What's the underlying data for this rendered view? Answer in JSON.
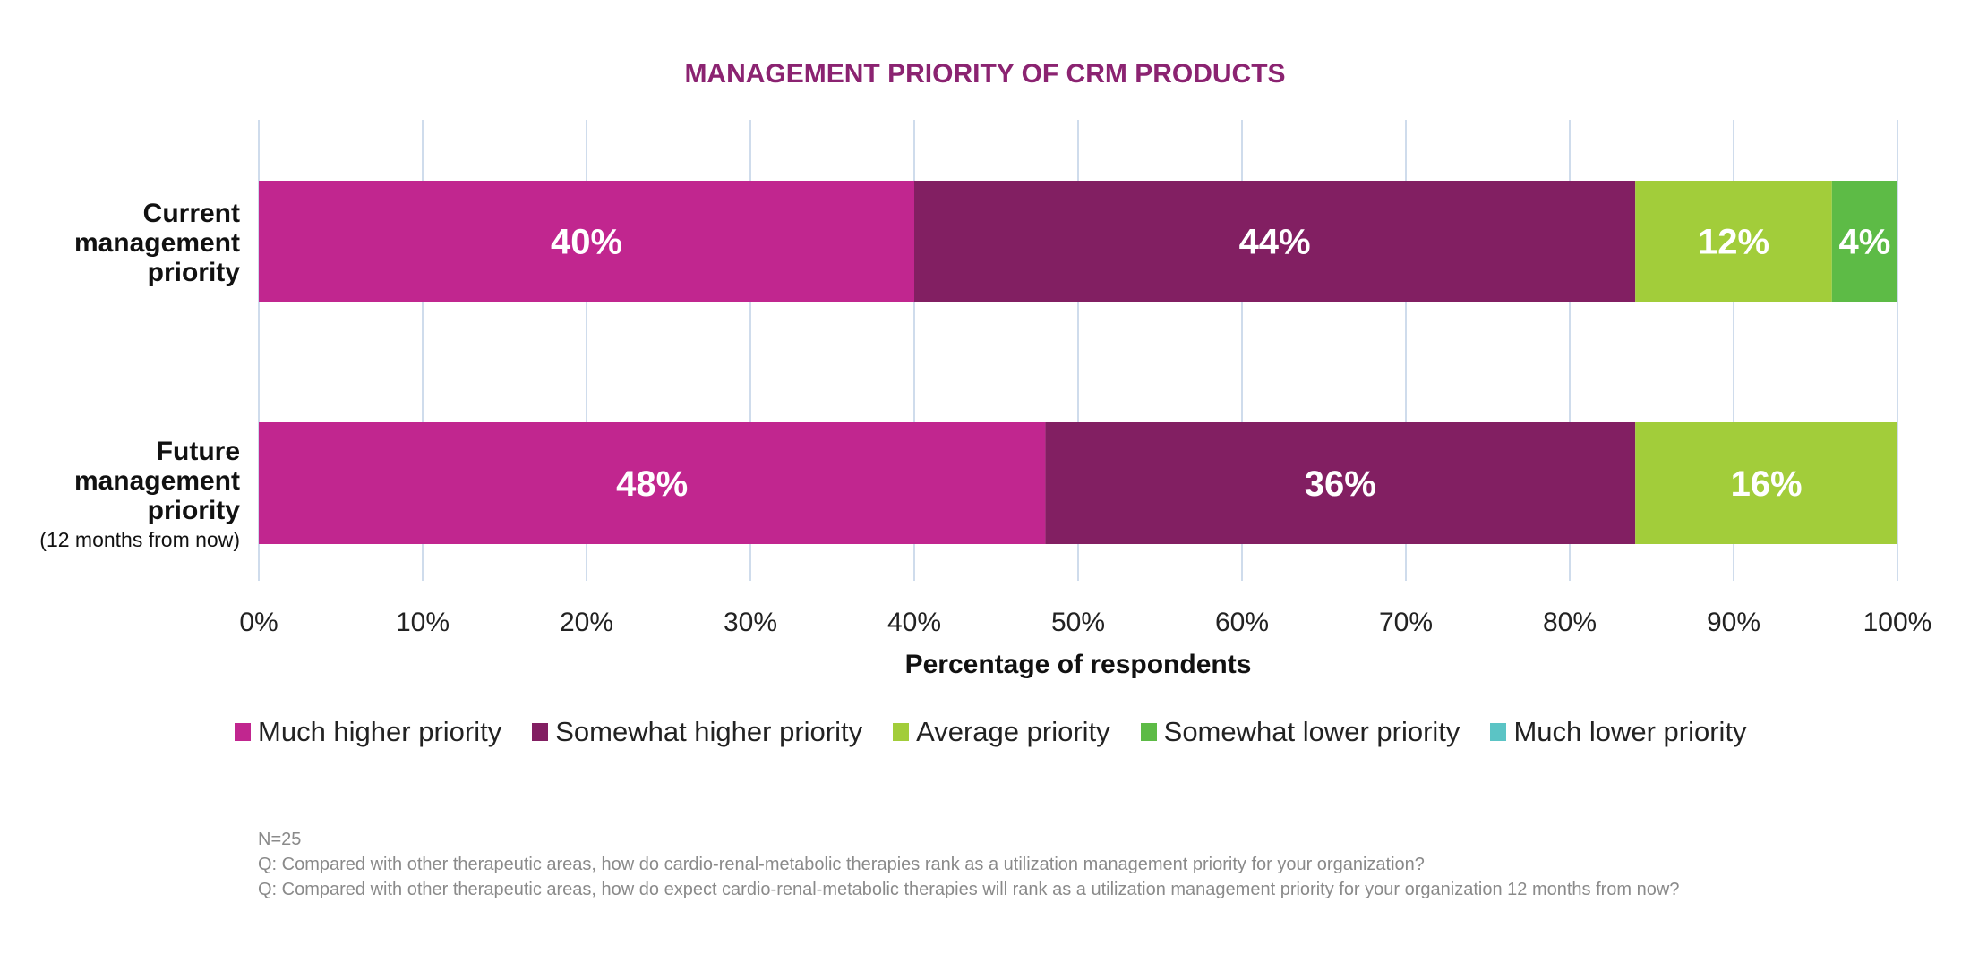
{
  "chart_data": {
    "type": "bar",
    "orientation": "horizontal",
    "stacked": true,
    "title": "MANAGEMENT PRIORITY OF CRM PRODUCTS",
    "categories": [
      {
        "lines": [
          "Current",
          "management",
          "priority"
        ],
        "sub": ""
      },
      {
        "lines": [
          "Future",
          "management",
          "priority"
        ],
        "sub": "(12 months from now)"
      }
    ],
    "series": [
      {
        "name": "Much higher priority",
        "color": "#C1268F",
        "values": [
          40,
          48
        ]
      },
      {
        "name": "Somewhat higher priority",
        "color": "#821F62",
        "values": [
          44,
          36
        ]
      },
      {
        "name": "Average priority",
        "color": "#A2CD3A",
        "values": [
          12,
          16
        ]
      },
      {
        "name": "Somewhat lower priority",
        "color": "#5DBB46",
        "values": [
          4,
          0
        ]
      },
      {
        "name": "Much lower priority",
        "color": "#5BC4C5",
        "values": [
          0,
          0
        ]
      }
    ],
    "xlabel": "Percentage of respondents",
    "xlim": [
      0,
      100
    ],
    "xticks": [
      "0%",
      "10%",
      "20%",
      "30%",
      "40%",
      "50%",
      "60%",
      "70%",
      "80%",
      "90%",
      "100%"
    ],
    "grid": true,
    "legend": "bottom"
  },
  "footnotes": [
    "N=25",
    "Q: Compared with other therapeutic areas, how do cardio-renal-metabolic therapies rank as a utilization management priority for your organization?",
    "Q: Compared with other therapeutic areas, how do expect cardio-renal-metabolic therapies will rank as a utilization management priority for your organization 12 months from now?"
  ]
}
